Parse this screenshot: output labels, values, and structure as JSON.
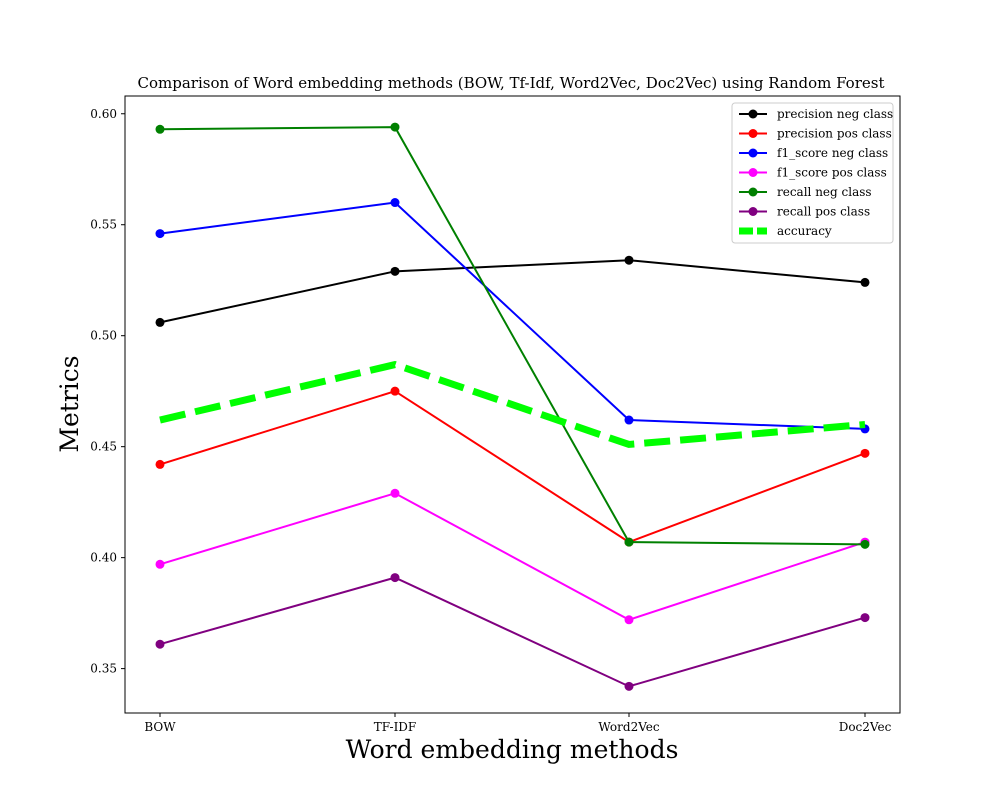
{
  "chart_data": {
    "type": "line",
    "title": "Comparison of Word embedding methods (BOW, Tf-Idf, Word2Vec, Doc2Vec) using Random Forest",
    "xlabel": "Word embedding methods",
    "ylabel": "Metrics",
    "categories": [
      "BOW",
      "TF-IDF",
      "Word2Vec",
      "Doc2Vec"
    ],
    "ylim": [
      0.33,
      0.608
    ],
    "yticks": [
      "0.35",
      "0.40",
      "0.45",
      "0.50",
      "0.55",
      "0.60"
    ],
    "grid": false,
    "legend_position": "top-right",
    "series": [
      {
        "name": "precision neg class",
        "color": "#000000",
        "style": "solid-marker",
        "values": [
          0.506,
          0.529,
          0.534,
          0.524
        ]
      },
      {
        "name": "precision pos class",
        "color": "#ff0000",
        "style": "solid-marker",
        "values": [
          0.442,
          0.475,
          0.407,
          0.447
        ]
      },
      {
        "name": "f1_score neg class",
        "color": "#0000ff",
        "style": "solid-marker",
        "values": [
          0.546,
          0.56,
          0.462,
          0.458
        ]
      },
      {
        "name": "f1_score pos class",
        "color": "#ff00ff",
        "style": "solid-marker",
        "values": [
          0.397,
          0.429,
          0.372,
          0.407
        ]
      },
      {
        "name": "recall neg class",
        "color": "#008000",
        "style": "solid-marker",
        "values": [
          0.593,
          0.594,
          0.407,
          0.406
        ]
      },
      {
        "name": "recall pos class",
        "color": "#800080",
        "style": "solid-marker",
        "values": [
          0.361,
          0.391,
          0.342,
          0.373
        ]
      },
      {
        "name": "accuracy",
        "color": "#00ff00",
        "style": "dashed-thick",
        "values": [
          0.462,
          0.487,
          0.451,
          0.46
        ]
      }
    ]
  }
}
